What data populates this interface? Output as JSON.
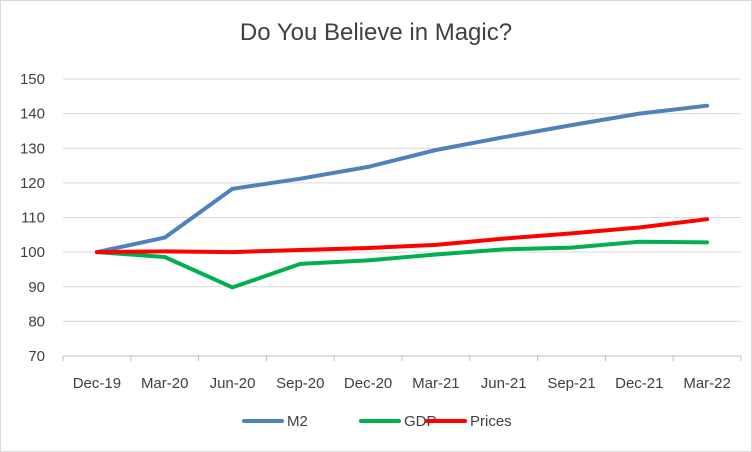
{
  "chart_data": {
    "type": "line",
    "title": "Do You Believe in Magic?",
    "xlabel": "",
    "ylabel": "",
    "categories": [
      "Dec-19",
      "Mar-20",
      "Jun-20",
      "Sep-20",
      "Dec-20",
      "Mar-21",
      "Jun-21",
      "Sep-21",
      "Dec-21",
      "Mar-22"
    ],
    "ylim": [
      70,
      150
    ],
    "yticks": [
      "70",
      "80",
      "90",
      "100",
      "110",
      "120",
      "130",
      "140",
      "150"
    ],
    "grid": true,
    "legend": "bottom",
    "series": [
      {
        "name": "M2",
        "color": "#4f81bd",
        "values": [
          100,
          104.2,
          118.3,
          121.2,
          124.6,
          129.5,
          133.2,
          136.7,
          140.0,
          142.3
        ]
      },
      {
        "name": "GDP",
        "color": "#00b050",
        "values": [
          100,
          98.6,
          89.8,
          96.6,
          97.6,
          99.3,
          100.8,
          101.3,
          103.0,
          102.8
        ]
      },
      {
        "name": "Prices",
        "color": "#ff0000",
        "values": [
          100,
          100.2,
          100.0,
          100.6,
          101.2,
          102.1,
          103.9,
          105.4,
          107.1,
          109.5
        ]
      }
    ]
  }
}
